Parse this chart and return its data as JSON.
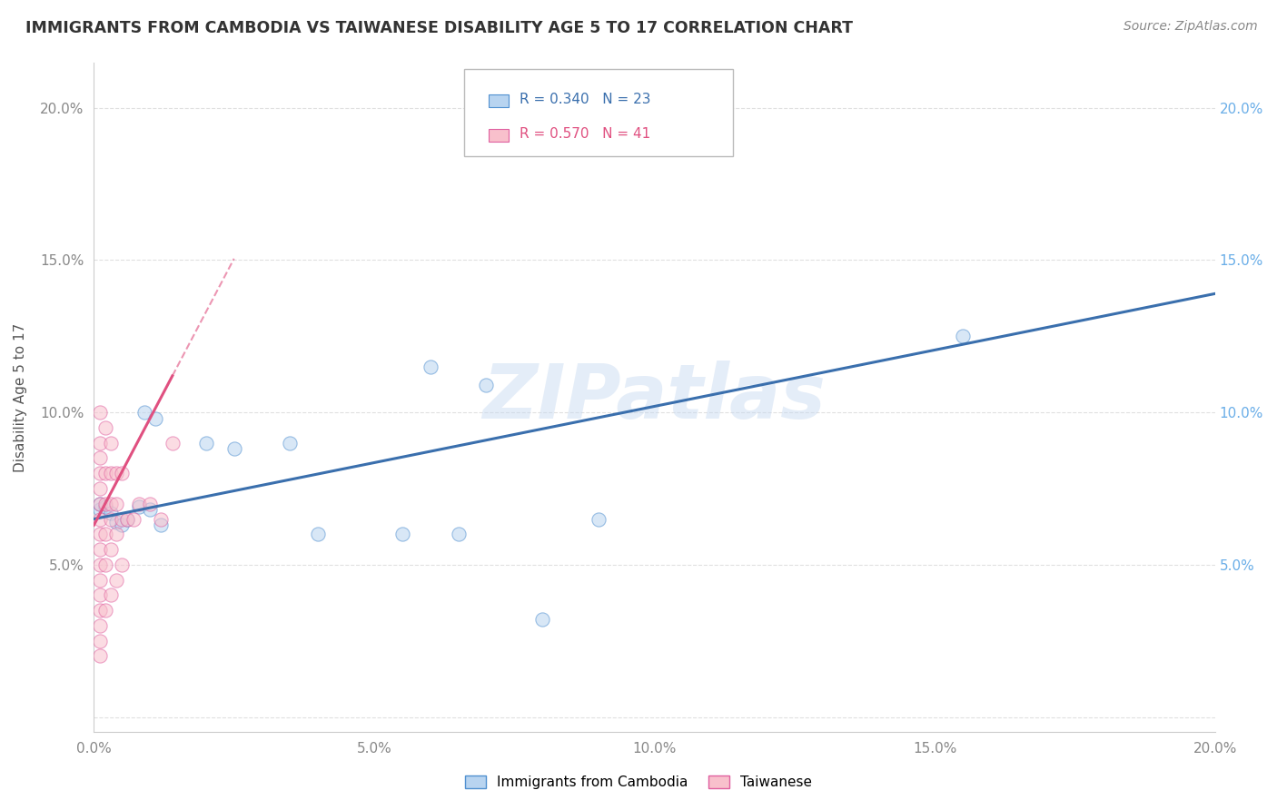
{
  "title": "IMMIGRANTS FROM CAMBODIA VS TAIWANESE DISABILITY AGE 5 TO 17 CORRELATION CHART",
  "source": "Source: ZipAtlas.com",
  "ylabel": "Disability Age 5 to 17",
  "legend_blue_label": "Immigrants from Cambodia",
  "legend_pink_label": "Taiwanese",
  "blue_r": "R = 0.340",
  "blue_n": "N = 23",
  "pink_r": "R = 0.570",
  "pink_n": "N = 41",
  "watermark": "ZIPatlas",
  "xlim": [
    0.0,
    0.2
  ],
  "ylim": [
    -0.005,
    0.215
  ],
  "xticks": [
    0.0,
    0.05,
    0.1,
    0.15,
    0.2
  ],
  "yticks": [
    0.0,
    0.05,
    0.1,
    0.15,
    0.2
  ],
  "xtick_labels": [
    "0.0%",
    "5.0%",
    "10.0%",
    "15.0%",
    "20.0%"
  ],
  "ytick_labels_left": [
    "",
    "5.0%",
    "10.0%",
    "15.0%",
    "20.0%"
  ],
  "ytick_labels_right": [
    "",
    "5.0%",
    "10.0%",
    "15.0%",
    "20.0%"
  ],
  "blue_scatter_x": [
    0.001,
    0.001,
    0.002,
    0.003,
    0.004,
    0.005,
    0.006,
    0.008,
    0.009,
    0.01,
    0.011,
    0.012,
    0.02,
    0.025,
    0.035,
    0.04,
    0.055,
    0.06,
    0.065,
    0.07,
    0.08,
    0.09,
    0.155
  ],
  "blue_scatter_y": [
    0.068,
    0.07,
    0.069,
    0.067,
    0.064,
    0.063,
    0.065,
    0.069,
    0.1,
    0.068,
    0.098,
    0.063,
    0.09,
    0.088,
    0.09,
    0.06,
    0.06,
    0.115,
    0.06,
    0.109,
    0.032,
    0.065,
    0.125
  ],
  "pink_scatter_x": [
    0.001,
    0.001,
    0.001,
    0.001,
    0.001,
    0.001,
    0.001,
    0.001,
    0.001,
    0.001,
    0.001,
    0.001,
    0.001,
    0.001,
    0.001,
    0.001,
    0.002,
    0.002,
    0.002,
    0.002,
    0.002,
    0.002,
    0.003,
    0.003,
    0.003,
    0.003,
    0.003,
    0.003,
    0.004,
    0.004,
    0.004,
    0.004,
    0.005,
    0.005,
    0.005,
    0.006,
    0.007,
    0.008,
    0.01,
    0.012,
    0.014
  ],
  "pink_scatter_y": [
    0.02,
    0.025,
    0.03,
    0.035,
    0.04,
    0.045,
    0.05,
    0.055,
    0.06,
    0.065,
    0.07,
    0.075,
    0.08,
    0.085,
    0.09,
    0.1,
    0.035,
    0.05,
    0.06,
    0.07,
    0.08,
    0.095,
    0.04,
    0.055,
    0.065,
    0.07,
    0.08,
    0.09,
    0.045,
    0.06,
    0.07,
    0.08,
    0.05,
    0.065,
    0.08,
    0.065,
    0.065,
    0.07,
    0.07,
    0.065,
    0.09
  ],
  "blue_color": "#b8d4f0",
  "pink_color": "#f8c0cc",
  "blue_edge_color": "#5090d0",
  "pink_edge_color": "#e060a0",
  "blue_line_color": "#3a6fad",
  "pink_line_color": "#e05080",
  "grid_color": "#e0e0e0",
  "background_color": "#ffffff",
  "title_color": "#333333",
  "axis_label_color": "#555555",
  "tick_label_color_left": "#888888",
  "tick_label_color_right": "#6aaee8",
  "scatter_size": 120,
  "alpha_scatter": 0.55,
  "blue_trend_intercept": 0.065,
  "blue_trend_slope": 0.37,
  "pink_trend_intercept": 0.063,
  "pink_trend_slope": 3.5
}
